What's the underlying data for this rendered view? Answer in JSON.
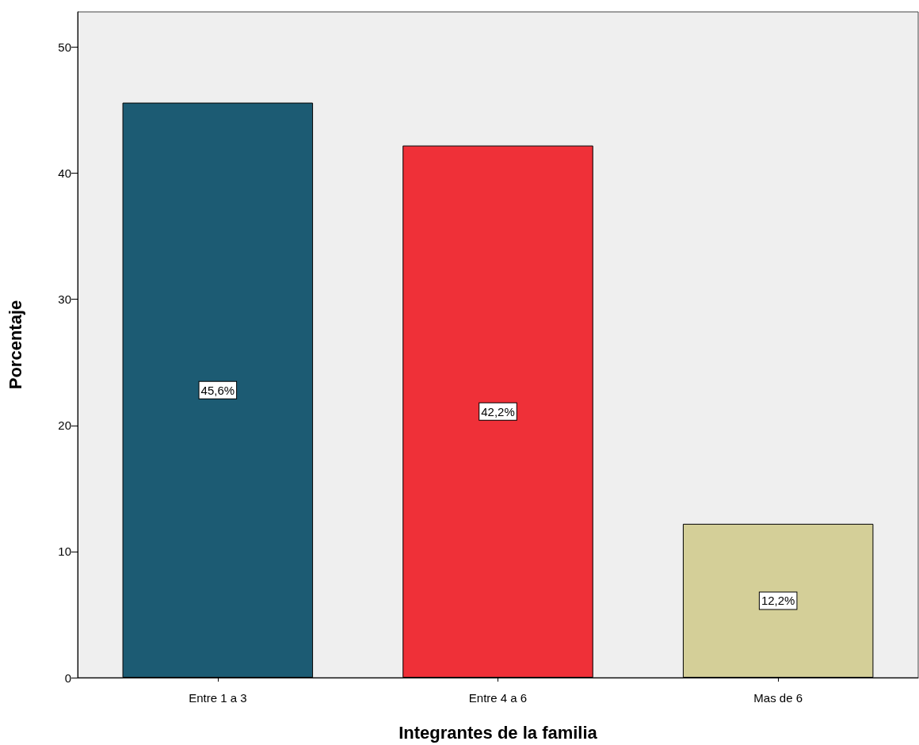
{
  "chart_data": {
    "type": "bar",
    "xlabel": "Integrantes de la familia",
    "ylabel": "Porcentaje",
    "categories": [
      "Entre 1 a 3",
      "Entre 4 a 6",
      "Mas de 6"
    ],
    "values": [
      45.6,
      42.2,
      12.2
    ],
    "colors": [
      "#1c5b73",
      "#ef3038",
      "#d4cf98"
    ],
    "value_labels": [
      "45,6%",
      "42,2%",
      "12,2%"
    ],
    "ylim": [
      0,
      52.8
    ],
    "yticks": [
      0,
      10,
      20,
      30,
      40,
      50
    ],
    "grid": false
  }
}
